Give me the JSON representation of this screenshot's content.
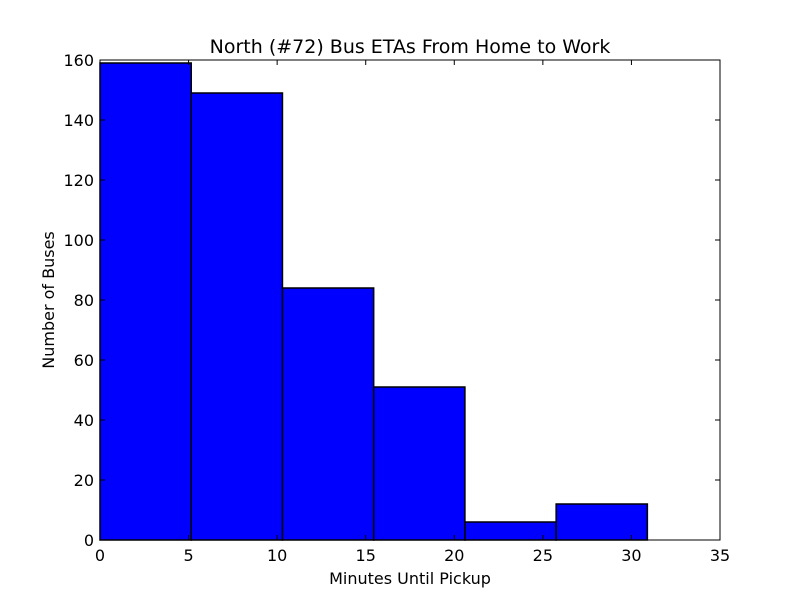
{
  "chart_data": {
    "type": "bar",
    "title": "North (#72) Bus ETAs From Home to Work",
    "xlabel": "Minutes Until Pickup",
    "ylabel": "Number of Buses",
    "xlim": [
      0,
      35
    ],
    "ylim": [
      0,
      160
    ],
    "xticks": [
      0,
      5,
      10,
      15,
      20,
      25,
      30,
      35
    ],
    "yticks": [
      0,
      20,
      40,
      60,
      80,
      100,
      120,
      140,
      160
    ],
    "bins": [
      {
        "x0": 0.0,
        "x1": 5.15,
        "value": 159
      },
      {
        "x0": 5.15,
        "x1": 10.3,
        "value": 149
      },
      {
        "x0": 10.3,
        "x1": 15.45,
        "value": 84
      },
      {
        "x0": 15.45,
        "x1": 20.6,
        "value": 51
      },
      {
        "x0": 20.6,
        "x1": 25.75,
        "value": 6
      },
      {
        "x0": 25.75,
        "x1": 30.9,
        "value": 12
      }
    ],
    "bar_color": "#0000ff",
    "edge_color": "#000000",
    "grid": false,
    "legend": "none"
  }
}
